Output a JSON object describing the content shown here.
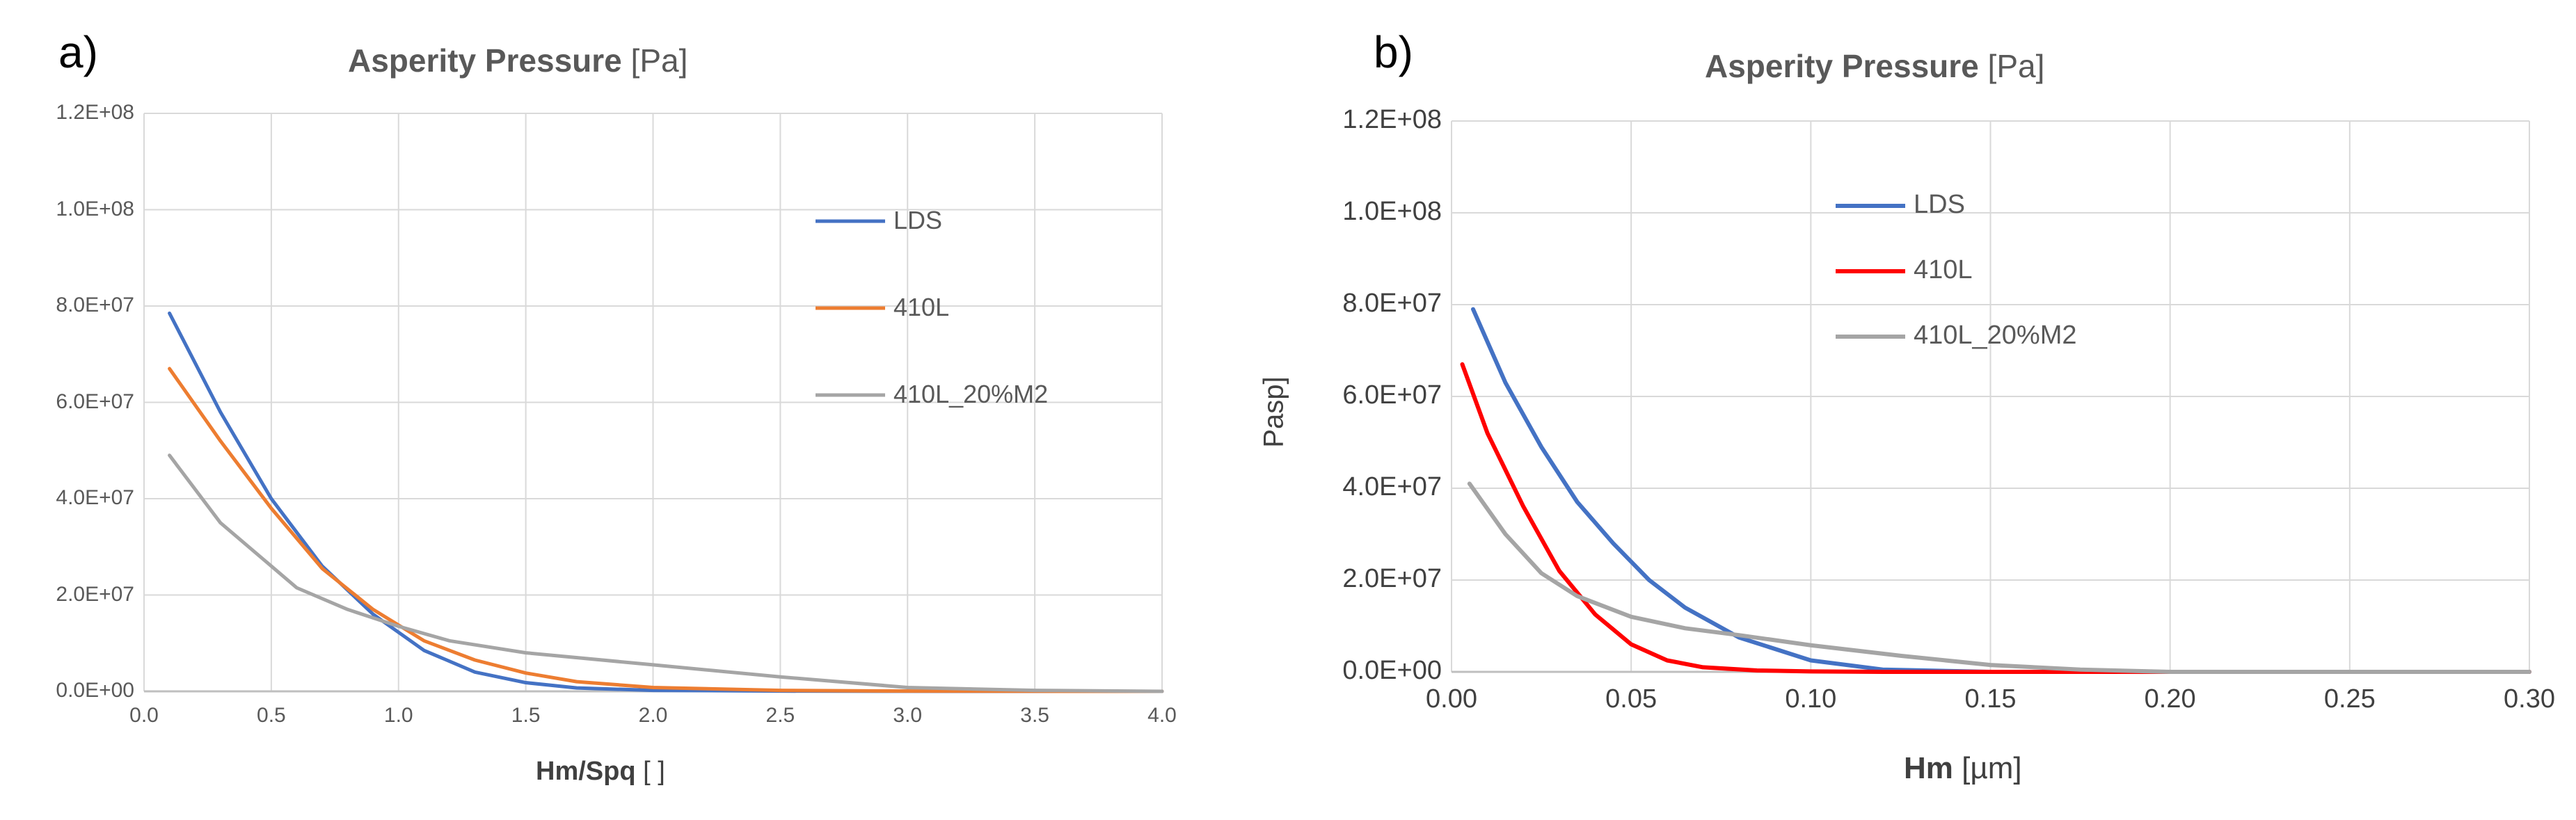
{
  "chart_data": [
    {
      "panel": "a)",
      "type": "line",
      "title": "Asperity Pressure",
      "title_unit": "[Pa]",
      "xlabel": "Hm/Spq",
      "xlabel_unit": "[ ]",
      "ylabel": "",
      "xlim": [
        0.0,
        4.0
      ],
      "ylim": [
        0,
        120000000
      ],
      "x_ticks": [
        "0.0",
        "0.5",
        "1.0",
        "1.5",
        "2.0",
        "2.5",
        "3.0",
        "3.5",
        "4.0"
      ],
      "y_ticks": [
        "0.0E+00",
        "2.0E+07",
        "4.0E+07",
        "6.0E+07",
        "8.0E+07",
        "1.0E+08",
        "1.2E+08"
      ],
      "grid": true,
      "legend_position": "right",
      "series": [
        {
          "name": "LDS",
          "color": "#4472C4",
          "x": [
            0.1,
            0.3,
            0.5,
            0.7,
            0.9,
            1.1,
            1.3,
            1.5,
            1.7,
            2.0,
            2.5,
            3.0,
            3.5,
            4.0
          ],
          "y": [
            78500000,
            58000000,
            40000000,
            26000000,
            16000000,
            8500000,
            4000000,
            1800000,
            700000,
            200000,
            50000,
            10000,
            0,
            0
          ]
        },
        {
          "name": "410L",
          "color": "#ED7D31",
          "x": [
            0.1,
            0.3,
            0.5,
            0.7,
            0.9,
            1.1,
            1.3,
            1.5,
            1.7,
            2.0,
            2.5,
            3.0,
            3.5,
            4.0
          ],
          "y": [
            67000000,
            52000000,
            38000000,
            25500000,
            17000000,
            10500000,
            6500000,
            3800000,
            2000000,
            800000,
            200000,
            50000,
            10000,
            0
          ]
        },
        {
          "name": "410L_20%M2",
          "color": "#A5A5A5",
          "x": [
            0.1,
            0.3,
            0.5,
            0.6,
            0.8,
            1.0,
            1.2,
            1.5,
            2.0,
            2.5,
            3.0,
            3.5,
            4.0
          ],
          "y": [
            49000000,
            35000000,
            26000000,
            21500000,
            17000000,
            13500000,
            10500000,
            8000000,
            5500000,
            3000000,
            800000,
            200000,
            0
          ]
        }
      ]
    },
    {
      "panel": "b)",
      "type": "line",
      "title": "Asperity Pressure",
      "title_unit": "[Pa]",
      "xlabel": "Hm",
      "xlabel_unit": "[µm]",
      "ylabel": "Pasp]",
      "xlim": [
        0.0,
        0.3
      ],
      "ylim": [
        0,
        120000000
      ],
      "x_ticks": [
        "0.00",
        "0.05",
        "0.10",
        "0.15",
        "0.20",
        "0.25",
        "0.30"
      ],
      "y_ticks": [
        "0.0E+00",
        "2.0E+07",
        "4.0E+07",
        "6.0E+07",
        "8.0E+07",
        "1.0E+08",
        "1.2E+08"
      ],
      "grid": true,
      "legend_position": "top-right",
      "series": [
        {
          "name": "LDS",
          "color": "#4472C4",
          "x": [
            0.006,
            0.015,
            0.025,
            0.035,
            0.045,
            0.055,
            0.065,
            0.08,
            0.1,
            0.12,
            0.15,
            0.2,
            0.3
          ],
          "y": [
            79000000,
            63000000,
            49000000,
            37000000,
            28000000,
            20000000,
            14000000,
            7500000,
            2500000,
            500000,
            0,
            0,
            0
          ]
        },
        {
          "name": "410L",
          "color": "#FF0000",
          "x": [
            0.003,
            0.01,
            0.02,
            0.03,
            0.04,
            0.05,
            0.06,
            0.07,
            0.085,
            0.1,
            0.12,
            0.15,
            0.2,
            0.3
          ],
          "y": [
            67000000,
            52000000,
            36000000,
            22000000,
            12500000,
            6000000,
            2500000,
            1000000,
            300000,
            100000,
            0,
            0,
            0,
            0
          ]
        },
        {
          "name": "410L_20%M2",
          "color": "#A5A5A5",
          "x": [
            0.005,
            0.015,
            0.025,
            0.035,
            0.05,
            0.065,
            0.08,
            0.1,
            0.125,
            0.15,
            0.175,
            0.2,
            0.3
          ],
          "y": [
            41000000,
            30000000,
            21500000,
            16500000,
            12000000,
            9500000,
            8000000,
            5800000,
            3500000,
            1500000,
            500000,
            0,
            0
          ]
        }
      ]
    }
  ]
}
